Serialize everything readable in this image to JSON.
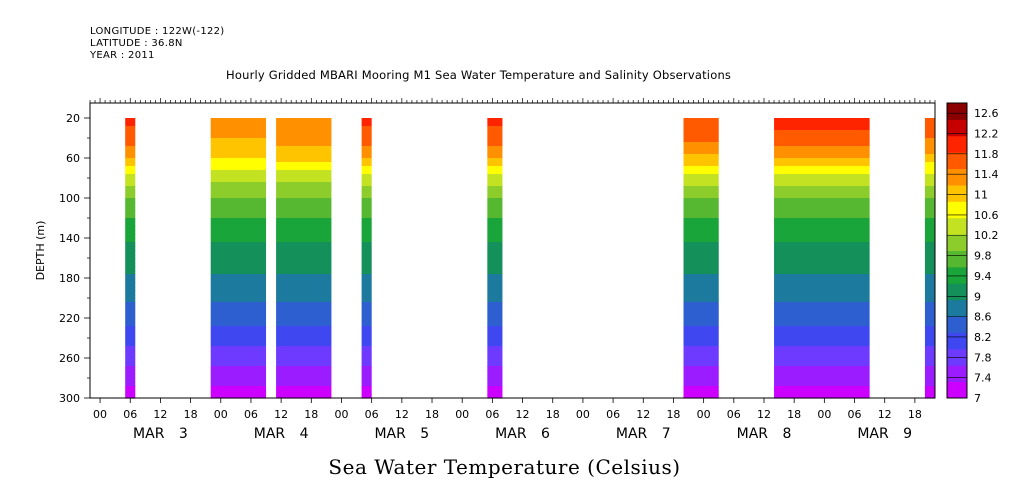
{
  "header": {
    "longitude": "LONGITUDE : 122W(-122)",
    "latitude": "LATITUDE : 36.8N",
    "year": "YEAR : 2011"
  },
  "chart_data": {
    "type": "heatmap",
    "title": "Hourly Gridded MBARI Mooring M1 Sea Water Temperature and Salinity Observations",
    "variable_label": "Sea Water Temperature (Celsius)",
    "xlabel": "",
    "ylabel": "DEPTH (m)",
    "y_ticks": [
      20,
      60,
      100,
      140,
      180,
      220,
      260,
      300
    ],
    "ylim": [
      5,
      300
    ],
    "x_range": [
      "MAR 2 22:00",
      "MAR 9 22:00"
    ],
    "hour_tick_labels": [
      "00",
      "06",
      "12",
      "18",
      "00",
      "06",
      "12",
      "18",
      "00",
      "06",
      "12",
      "18",
      "00",
      "06",
      "12",
      "18",
      "00",
      "06",
      "12",
      "18",
      "00",
      "06",
      "12",
      "18",
      "00",
      "06",
      "12",
      "18"
    ],
    "day_labels": [
      "MAR 3",
      "MAR 4",
      "MAR 5",
      "MAR 6",
      "MAR 7",
      "MAR 8",
      "MAR 9"
    ],
    "colorbar_levels": [
      "7",
      "7.4",
      "7.8",
      "8.2",
      "8.6",
      "9",
      "9.4",
      "9.8",
      "10.2",
      "10.6",
      "11",
      "11.4",
      "11.8",
      "12.2",
      "12.6"
    ],
    "colorbar_range": [
      7,
      12.8
    ],
    "data_segments": [
      {
        "start": "MAR 3 05:00",
        "end": "MAR 3 07:00",
        "surface_temp": 11.9
      },
      {
        "start": "MAR 3 22:00",
        "end": "MAR 4 09:00",
        "surface_temp": 11.3
      },
      {
        "start": "MAR 4 11:00",
        "end": "MAR 4 22:00",
        "surface_temp": 11.5
      },
      {
        "start": "MAR 5 04:00",
        "end": "MAR 5 06:00",
        "surface_temp": 11.9
      },
      {
        "start": "MAR 6 05:00",
        "end": "MAR 6 08:00",
        "surface_temp": 11.9
      },
      {
        "start": "MAR 7 20:00",
        "end": "MAR 8 03:00",
        "surface_temp": 11.8
      },
      {
        "start": "MAR 8 14:00",
        "end": "MAR 9 09:00",
        "surface_temp": 12.0
      },
      {
        "start": "MAR 9 20:00",
        "end": "MAR 9 22:00",
        "surface_temp": 11.7
      }
    ],
    "temperature_profile": [
      {
        "depth": 20,
        "temp": 11.8
      },
      {
        "depth": 40,
        "temp": 11.6
      },
      {
        "depth": 60,
        "temp": 11.1
      },
      {
        "depth": 80,
        "temp": 10.4
      },
      {
        "depth": 100,
        "temp": 9.9
      },
      {
        "depth": 140,
        "temp": 9.3
      },
      {
        "depth": 180,
        "temp": 8.9
      },
      {
        "depth": 220,
        "temp": 8.4
      },
      {
        "depth": 260,
        "temp": 7.8
      },
      {
        "depth": 300,
        "temp": 7.1
      }
    ]
  }
}
